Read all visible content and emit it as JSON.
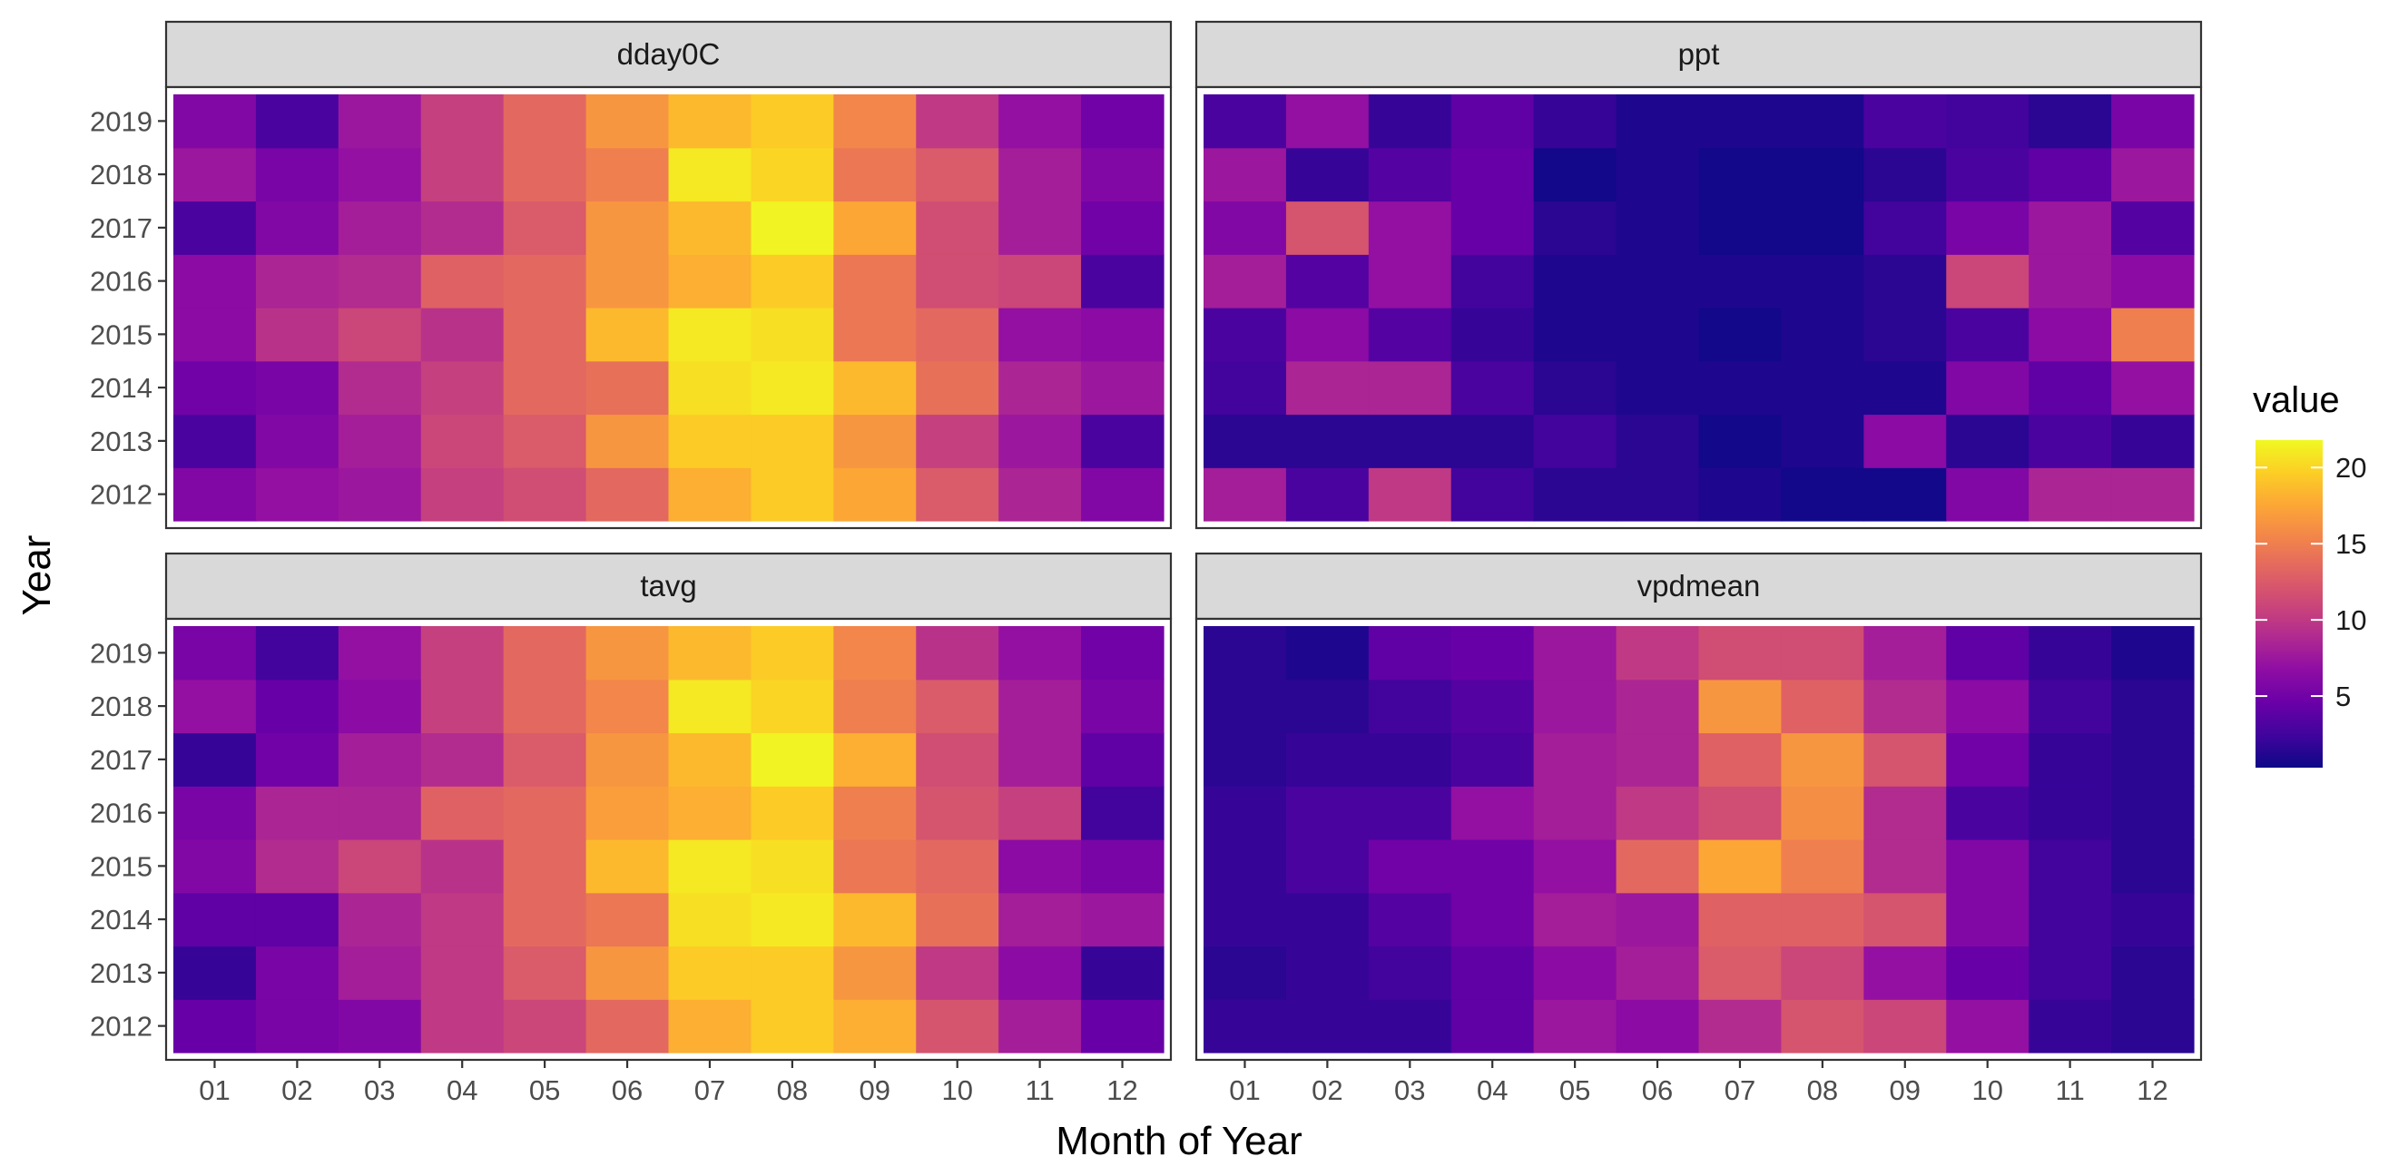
{
  "chart_data": {
    "type": "heatmap",
    "xlabel": "Month of Year",
    "ylabel": "Year",
    "x_categories": [
      "01",
      "02",
      "03",
      "04",
      "05",
      "06",
      "07",
      "08",
      "09",
      "10",
      "11",
      "12"
    ],
    "y_categories": [
      "2012",
      "2013",
      "2014",
      "2015",
      "2016",
      "2017",
      "2018",
      "2019"
    ],
    "colorscale": "plasma",
    "colorbar": {
      "title": "value",
      "range": [
        0.3,
        21.8
      ],
      "ticks": [
        5,
        10,
        15,
        20
      ],
      "tick_labels": [
        "5",
        "10",
        "15",
        "20"
      ]
    },
    "grid": false,
    "legend_position": "right",
    "panels": [
      {
        "title": "dday0C",
        "values": [
          [
            6.0,
            7.0,
            7.5,
            10.5,
            11.5,
            13.5,
            18.0,
            19.5,
            17.5,
            12.5,
            8.5,
            6.0
          ],
          [
            3.0,
            6.0,
            8.0,
            11.0,
            12.5,
            16.5,
            19.5,
            19.5,
            16.5,
            10.5,
            7.5,
            3.0
          ],
          [
            5.0,
            5.5,
            9.0,
            10.5,
            13.5,
            14.0,
            20.5,
            21.0,
            18.5,
            14.0,
            8.5,
            7.5
          ],
          [
            6.5,
            9.5,
            11.0,
            9.5,
            13.5,
            18.5,
            21.0,
            20.5,
            14.5,
            13.5,
            7.0,
            6.5
          ],
          [
            6.5,
            8.5,
            9.0,
            13.0,
            13.5,
            16.5,
            18.0,
            19.5,
            14.5,
            11.5,
            11.0,
            3.0
          ],
          [
            3.0,
            6.0,
            8.0,
            9.0,
            12.5,
            16.5,
            18.5,
            21.5,
            17.5,
            11.5,
            8.0,
            5.0
          ],
          [
            7.5,
            5.5,
            7.0,
            10.5,
            13.5,
            15.0,
            21.0,
            20.0,
            14.5,
            12.5,
            8.0,
            6.0
          ],
          [
            6.0,
            3.0,
            7.5,
            10.5,
            13.5,
            16.5,
            18.5,
            19.5,
            15.5,
            10.0,
            7.0,
            5.0
          ]
        ]
      },
      {
        "title": "ppt",
        "values": [
          [
            8.0,
            3.0,
            10.0,
            2.5,
            1.5,
            1.5,
            1.0,
            0.5,
            0.5,
            6.0,
            8.5,
            8.5
          ],
          [
            1.5,
            1.5,
            1.5,
            1.5,
            2.5,
            1.5,
            0.5,
            1.0,
            6.5,
            1.5,
            3.0,
            2.0
          ],
          [
            2.5,
            8.5,
            8.5,
            3.0,
            1.5,
            1.0,
            1.0,
            1.0,
            1.0,
            6.0,
            4.0,
            7.0
          ],
          [
            3.0,
            6.5,
            3.5,
            2.0,
            1.0,
            1.0,
            0.5,
            1.0,
            1.5,
            3.0,
            6.5,
            15.0
          ],
          [
            8.0,
            3.5,
            7.0,
            2.5,
            1.0,
            1.0,
            1.0,
            1.0,
            1.5,
            11.0,
            7.5,
            6.5
          ],
          [
            6.0,
            12.0,
            7.0,
            4.5,
            1.5,
            1.0,
            0.5,
            0.5,
            2.5,
            5.5,
            7.5,
            3.5
          ],
          [
            7.5,
            2.0,
            3.5,
            4.5,
            0.5,
            1.0,
            0.5,
            0.5,
            1.5,
            3.0,
            4.0,
            7.5
          ],
          [
            3.0,
            7.0,
            2.0,
            4.0,
            2.0,
            1.0,
            1.0,
            1.0,
            3.0,
            2.5,
            1.5,
            5.5
          ]
        ]
      },
      {
        "title": "tavg",
        "values": [
          [
            4.5,
            5.5,
            6.0,
            10.0,
            11.0,
            13.5,
            18.0,
            19.5,
            18.0,
            12.0,
            8.0,
            4.5
          ],
          [
            2.0,
            5.5,
            8.0,
            10.0,
            12.5,
            16.5,
            19.5,
            19.5,
            16.5,
            10.0,
            6.5,
            2.0
          ],
          [
            4.0,
            4.0,
            8.5,
            10.0,
            13.5,
            14.5,
            20.5,
            21.0,
            18.5,
            14.0,
            8.0,
            7.5
          ],
          [
            6.0,
            9.0,
            11.0,
            9.5,
            13.5,
            18.5,
            21.0,
            20.5,
            14.5,
            13.5,
            6.5,
            5.5
          ],
          [
            5.5,
            8.5,
            8.5,
            13.0,
            13.5,
            17.0,
            18.0,
            19.5,
            15.0,
            12.0,
            10.5,
            2.5
          ],
          [
            2.0,
            5.0,
            8.0,
            9.0,
            12.5,
            16.5,
            18.5,
            21.5,
            18.0,
            11.5,
            8.0,
            4.0
          ],
          [
            7.0,
            4.5,
            6.5,
            10.5,
            13.5,
            15.5,
            21.0,
            20.0,
            15.0,
            12.5,
            8.0,
            5.5
          ],
          [
            5.5,
            2.5,
            7.0,
            10.5,
            13.5,
            16.5,
            18.5,
            19.5,
            15.5,
            9.5,
            7.0,
            5.0
          ]
        ]
      },
      {
        "title": "vpdmean",
        "values": [
          [
            2.0,
            2.0,
            2.0,
            4.0,
            7.5,
            6.5,
            9.0,
            12.0,
            11.0,
            7.0,
            2.0,
            1.5
          ],
          [
            1.5,
            2.0,
            2.5,
            4.0,
            6.5,
            8.0,
            12.5,
            11.0,
            7.0,
            4.5,
            2.5,
            1.5
          ],
          [
            2.0,
            2.0,
            3.5,
            5.0,
            8.0,
            7.5,
            13.0,
            13.0,
            12.0,
            6.0,
            2.5,
            2.0
          ],
          [
            2.0,
            3.0,
            5.0,
            5.0,
            7.0,
            13.5,
            17.5,
            15.0,
            9.0,
            6.0,
            2.5,
            1.5
          ],
          [
            2.0,
            3.0,
            3.0,
            7.0,
            8.0,
            10.0,
            11.5,
            16.0,
            9.0,
            3.0,
            2.0,
            1.5
          ],
          [
            1.5,
            2.0,
            2.0,
            3.0,
            8.0,
            8.5,
            13.0,
            16.5,
            12.0,
            5.0,
            2.0,
            1.5
          ],
          [
            1.5,
            1.5,
            2.5,
            3.5,
            7.5,
            8.5,
            16.5,
            13.0,
            9.0,
            6.5,
            2.5,
            1.5
          ],
          [
            1.5,
            1.0,
            4.0,
            4.5,
            7.5,
            10.0,
            11.5,
            11.5,
            8.0,
            4.0,
            2.0,
            1.0
          ]
        ]
      }
    ]
  }
}
